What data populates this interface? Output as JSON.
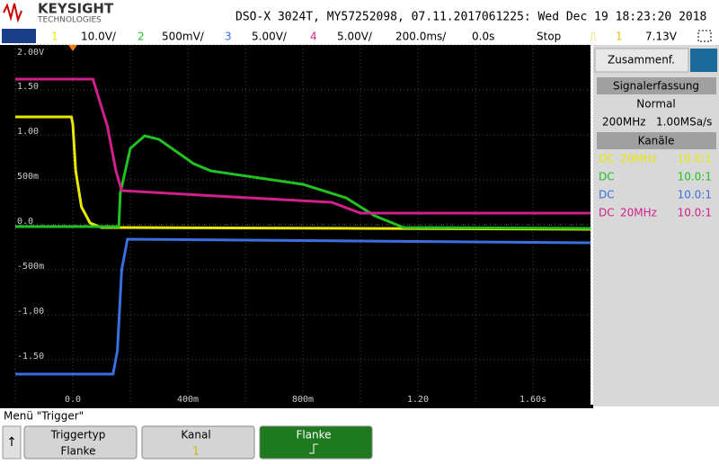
{
  "header": {
    "logo": "KEYSIGHT",
    "logo_sub": "TECHNOLOGIES",
    "title": "DSO-X 3024T, MY57252098, 07.11.2017061225: Wed Dec 19 18:23:20 2018"
  },
  "status_bar": {
    "timebase": "200.0ms/",
    "delay": "0.0s",
    "state": "Stop",
    "trigger_source": "1",
    "trigger_level": "7.13V"
  },
  "chart_data": {
    "type": "line",
    "xlim": [
      -0.2,
      1.8
    ],
    "xticks": [
      {
        "value": 0,
        "label": "0.0"
      },
      {
        "value": 0.4,
        "label": "400m"
      },
      {
        "value": 0.8,
        "label": "800m"
      },
      {
        "value": 1.2,
        "label": "1.20"
      },
      {
        "value": 1.6,
        "label": "1.60s"
      }
    ],
    "ylim": [
      -2,
      2
    ],
    "yticks": [
      {
        "value": 2,
        "label": "2.00V"
      },
      {
        "value": 1.5,
        "label": "1.50"
      },
      {
        "value": 1,
        "label": "1.00"
      },
      {
        "value": 0.5,
        "label": "500m"
      },
      {
        "value": 0,
        "label": "0.0"
      },
      {
        "value": -0.5,
        "label": "-500m"
      },
      {
        "value": -1,
        "label": "-1.00"
      },
      {
        "value": -1.5,
        "label": "-1.50"
      }
    ],
    "grid": true,
    "series": [
      {
        "name": "1",
        "scale": "10.0V/",
        "color": "#e8e800",
        "x": [
          -0.2,
          -0.005,
          0.0,
          0.01,
          0.03,
          0.06,
          0.1,
          1.0,
          1.8
        ],
        "values": [
          1.2,
          1.2,
          1.12,
          0.6,
          0.2,
          0.02,
          -0.03,
          -0.04,
          -0.05
        ]
      },
      {
        "name": "2",
        "scale": "500mV/",
        "color": "#22c022",
        "x": [
          -0.2,
          0.16,
          0.165,
          0.2,
          0.25,
          0.3,
          0.42,
          0.48,
          0.8,
          0.95,
          1.05,
          1.15,
          1.8
        ],
        "values": [
          -0.02,
          -0.02,
          0.35,
          0.85,
          0.99,
          0.95,
          0.68,
          0.6,
          0.45,
          0.3,
          0.1,
          -0.03,
          -0.04
        ]
      },
      {
        "name": "3",
        "scale": "5.00V/",
        "color": "#3a6fe0",
        "x": [
          -0.2,
          0.14,
          0.155,
          0.17,
          0.19,
          1.8
        ],
        "values": [
          -1.66,
          -1.66,
          -1.4,
          -0.5,
          -0.16,
          -0.2
        ]
      },
      {
        "name": "4",
        "scale": "5.00V/",
        "color": "#d0208a",
        "x": [
          -0.2,
          0.07,
          0.12,
          0.15,
          0.17,
          0.5,
          0.9,
          1.0,
          1.8
        ],
        "values": [
          1.62,
          1.62,
          1.1,
          0.6,
          0.38,
          0.32,
          0.25,
          0.13,
          0.13
        ]
      }
    ]
  },
  "side_panel": {
    "tab": "Zusammenf.",
    "acquisition_header": "Signalerfassung",
    "mode": "Normal",
    "bandwidth": "200MHz",
    "sample_rate": "1.00MSa/s",
    "channels_header": "Kanäle",
    "channels": [
      {
        "coupling": "DC",
        "limit": "20MHz",
        "probe": "10.0:1"
      },
      {
        "coupling": "DC",
        "probe": "10.0:1"
      },
      {
        "coupling": "DC",
        "probe": "10.0:1"
      },
      {
        "coupling": "DC",
        "limit": "20MHz",
        "probe": "10.0:1"
      }
    ]
  },
  "menu": {
    "title": "Menü \"Trigger\"",
    "softkeys": [
      {
        "label": "Triggertyp",
        "value": "Flanke"
      },
      {
        "label": "Kanal",
        "value": "1"
      },
      {
        "label": "Flanke"
      }
    ]
  }
}
